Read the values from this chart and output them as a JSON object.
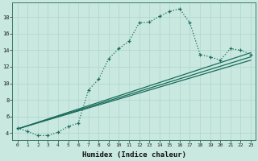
{
  "xlabel": "Humidex (Indice chaleur)",
  "ylabel": "",
  "bg_color": "#c8e8e0",
  "grid_color": "#b0d4cc",
  "line_color": "#1a6b5a",
  "xlim": [
    -0.5,
    23.5
  ],
  "ylim": [
    3.2,
    19.8
  ],
  "xticks": [
    0,
    1,
    2,
    3,
    4,
    5,
    6,
    7,
    8,
    9,
    10,
    11,
    12,
    13,
    14,
    15,
    16,
    17,
    18,
    19,
    20,
    21,
    22,
    23
  ],
  "yticks": [
    4,
    6,
    8,
    10,
    12,
    14,
    16,
    18
  ],
  "curve1_x": [
    0,
    1,
    2,
    3,
    4,
    5,
    6,
    7,
    8,
    9,
    10,
    11,
    12,
    13,
    14,
    15,
    16,
    17,
    18,
    19,
    20,
    21,
    22,
    23
  ],
  "curve1_y": [
    4.6,
    4.2,
    3.7,
    3.7,
    4.1,
    4.8,
    5.2,
    9.2,
    10.5,
    13.0,
    14.2,
    15.1,
    17.3,
    17.4,
    18.1,
    18.7,
    19.0,
    17.3,
    13.5,
    13.2,
    12.8,
    14.2,
    14.0,
    13.5
  ],
  "line2_x": [
    0,
    23
  ],
  "line2_y": [
    4.5,
    13.7
  ],
  "line3_x": [
    0,
    23
  ],
  "line3_y": [
    4.5,
    12.8
  ],
  "line4_x": [
    0,
    23
  ],
  "line4_y": [
    4.5,
    13.2
  ]
}
